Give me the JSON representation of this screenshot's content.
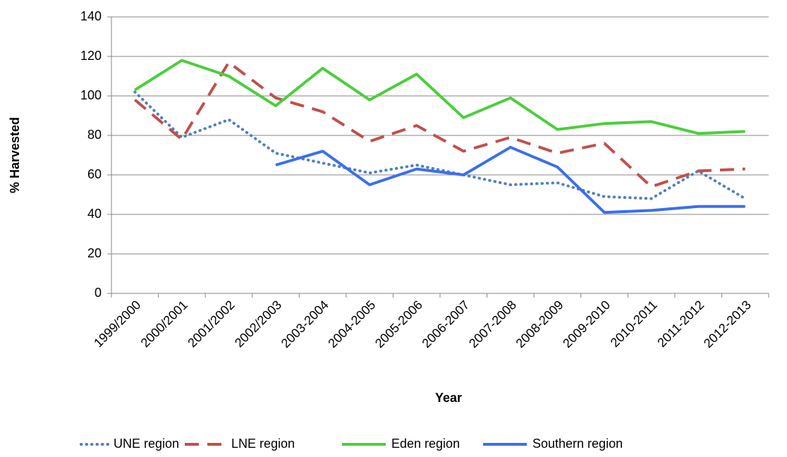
{
  "chart_data": {
    "type": "line",
    "x_label": "Year",
    "y_label": "% Harvested",
    "categories": [
      "1999/2000",
      "2000/2001",
      "2001/2002",
      "2002/2003",
      "2003-2004",
      "2004-2005",
      "2005-2006",
      "2006-2007",
      "2007-2008",
      "2008-2009",
      "2009-2010",
      "2010-2011",
      "2011-2012",
      "2012-2013"
    ],
    "series": [
      {
        "name": "UNE region",
        "color": "#4f81bd",
        "style": "dotted",
        "values": [
          102,
          79,
          88,
          71,
          66,
          61,
          65,
          60,
          55,
          56,
          49,
          48,
          62,
          48
        ]
      },
      {
        "name": "LNE region",
        "color": "#c0504d",
        "style": "dashed",
        "values": [
          98,
          78,
          117,
          99,
          92,
          77,
          85,
          72,
          79,
          71,
          76,
          54,
          62,
          63
        ]
      },
      {
        "name": "Eden region",
        "color": "#4cce3c",
        "style": "solid",
        "values": [
          103,
          118,
          110,
          95,
          114,
          98,
          111,
          89,
          99,
          83,
          86,
          87,
          81,
          82
        ]
      },
      {
        "name": "Southern region",
        "color": "#3b6ef0",
        "style": "solid",
        "values": [
          null,
          null,
          null,
          65,
          72,
          55,
          63,
          60,
          74,
          64,
          41,
          42,
          44,
          44
        ]
      }
    ],
    "ylim": [
      0,
      140
    ],
    "yticks": [
      0,
      20,
      40,
      60,
      80,
      100,
      120,
      140
    ],
    "grid": true,
    "legend": "bottom"
  }
}
